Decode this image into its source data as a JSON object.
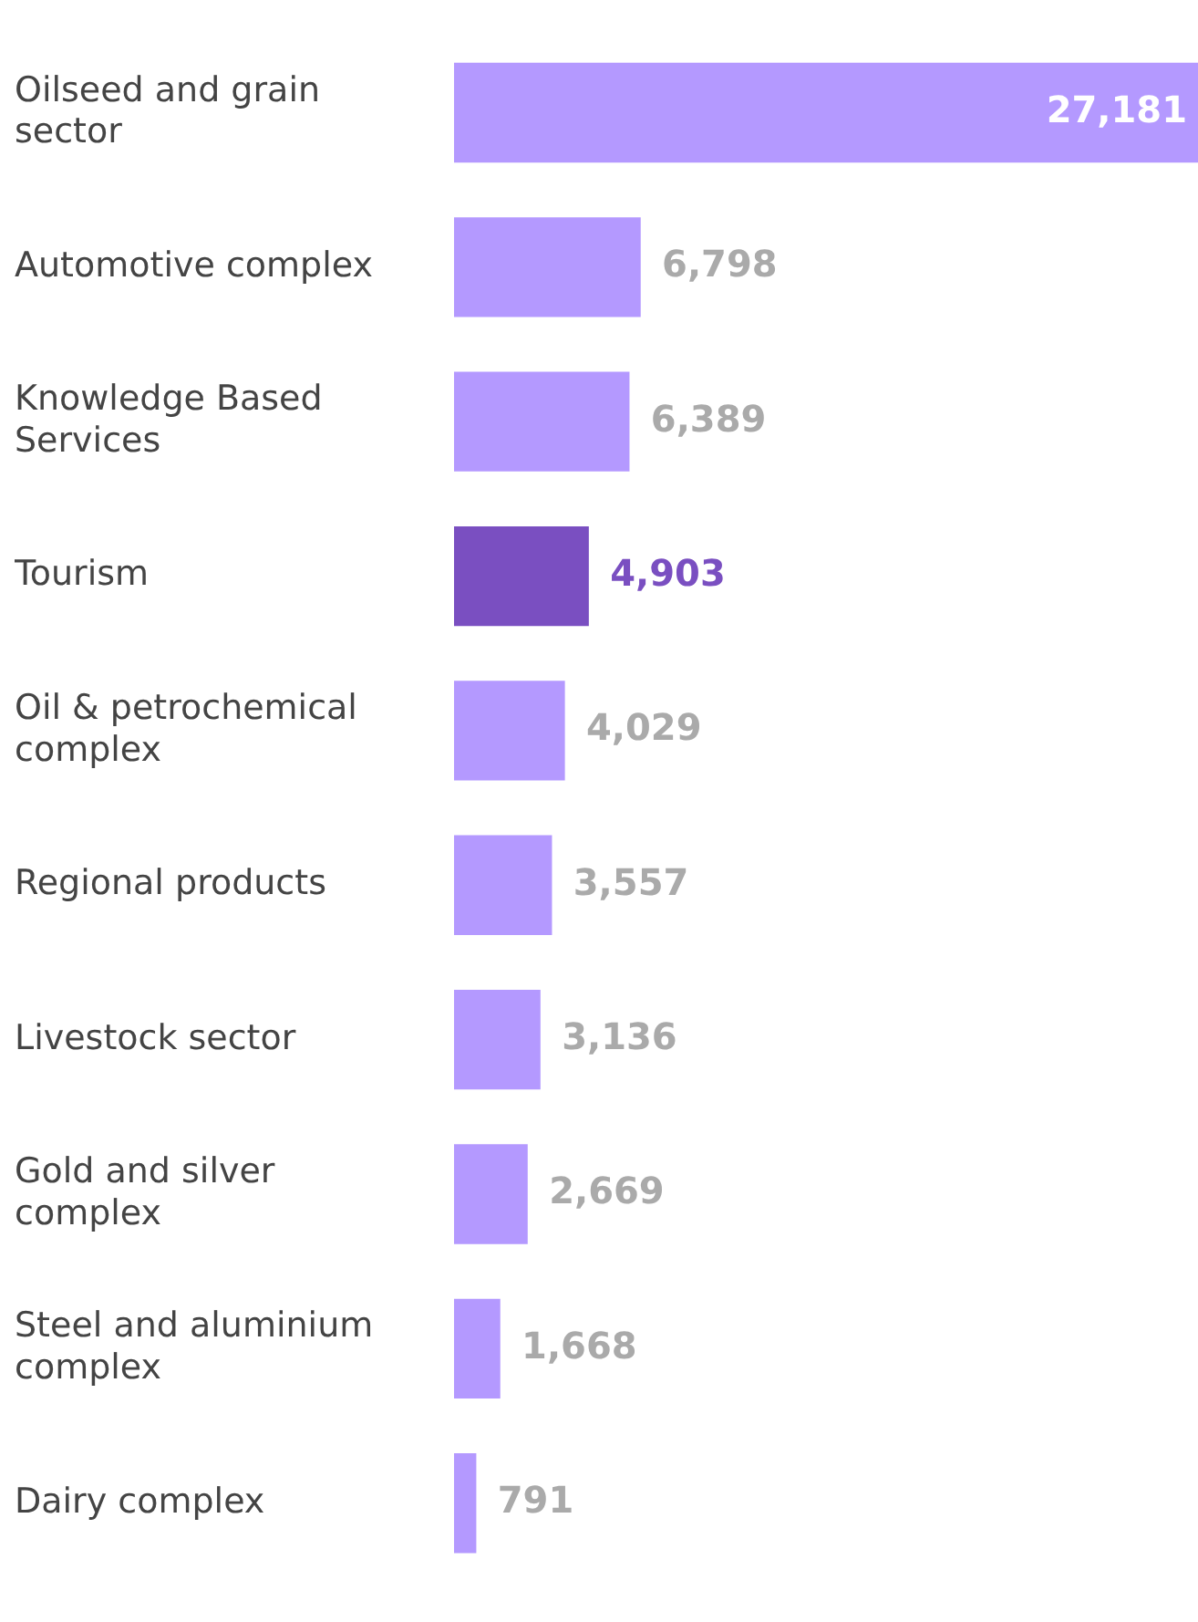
{
  "chart_data": {
    "type": "bar",
    "orientation": "horizontal",
    "value_labels": [
      "27,181",
      "6,798",
      "6,389",
      "4,903",
      "4,029",
      "3,557",
      "3,136",
      "2,669",
      "1,668",
      "791"
    ],
    "categories": [
      "Oilseed and grain sector",
      "Automotive complex",
      "Knowledge Based Services",
      "Tourism",
      "Oil & petrochemical complex",
      "Regional products",
      "Livestock sector",
      "Gold and silver complex",
      "Steel and aluminium complex",
      "Dairy complex"
    ],
    "values": [
      27181,
      6798,
      6389,
      4903,
      4029,
      3557,
      3136,
      2669,
      1668,
      791
    ],
    "colors": [
      "#b499ff",
      "#b499ff",
      "#b499ff",
      "#7a4fc1",
      "#b499ff",
      "#b499ff",
      "#b499ff",
      "#b499ff",
      "#b499ff",
      "#b499ff"
    ],
    "grid": false,
    "legend": false
  }
}
